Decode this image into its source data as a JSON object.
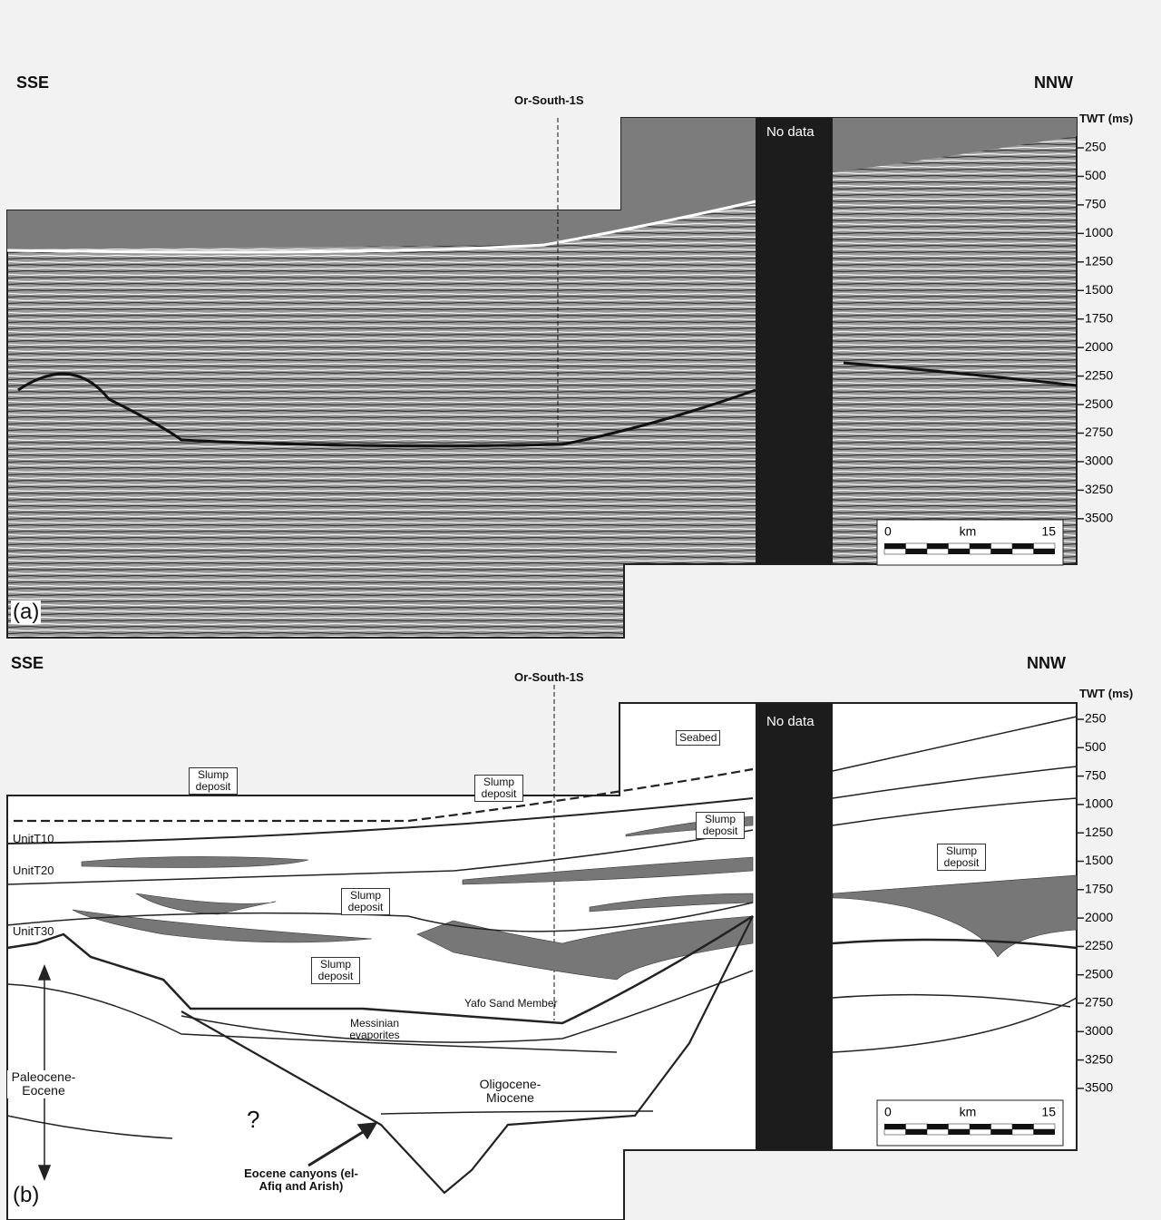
{
  "panel_a": {
    "left_label": "SSE",
    "right_label": "NNW",
    "well": "Or-South-1S",
    "no_data": "No data",
    "axis_title": "TWT (ms)",
    "ticks": [
      250,
      500,
      750,
      1000,
      1250,
      1500,
      1750,
      2000,
      2250,
      2500,
      2750,
      3000,
      3250,
      3500
    ],
    "scale": {
      "start": 0,
      "unit": "km",
      "end": 15
    },
    "panel_label": "(a)"
  },
  "panel_b": {
    "left_label": "SSE",
    "right_label": "NNW",
    "well": "Or-South-1S",
    "no_data": "No data",
    "axis_title": "TWT (ms)",
    "ticks": [
      250,
      500,
      750,
      1000,
      1250,
      1500,
      1750,
      2000,
      2250,
      2500,
      2750,
      3000,
      3250,
      3500
    ],
    "scale": {
      "start": 0,
      "unit": "km",
      "end": 15
    },
    "panel_label": "(b)",
    "seabed": "Seabed",
    "slumps": [
      "Slump deposit",
      "Slump deposit",
      "Slump deposit",
      "Slump deposit",
      "Slump deposit",
      "Slump deposit"
    ],
    "units": [
      "UnitT10",
      "UnitT20",
      "UnitT30"
    ],
    "yafo": "Yafo Sand Member",
    "messinian": "Messinian evaporites",
    "oligo_miocene": "Oligocene-Miocene",
    "paleo_eocene": "Paleocene-Eocene",
    "question": "?",
    "canyons": "Eocene canyons (el-Afiq and Arish)"
  }
}
